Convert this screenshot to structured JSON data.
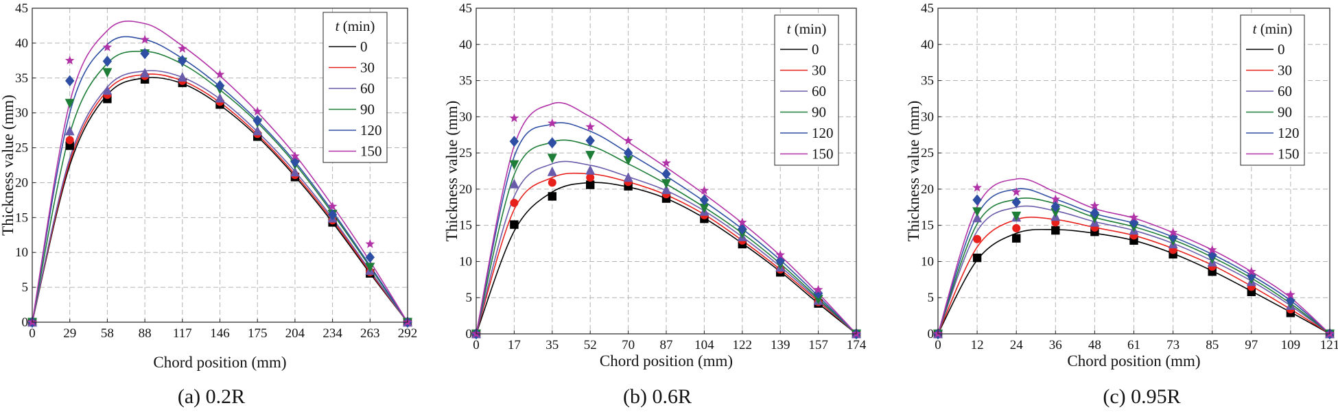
{
  "chart_data": [
    {
      "type": "line",
      "caption": "(a) 0.2R",
      "xlabel": "Chord position (mm)",
      "ylabel": "Thickness value (mm)",
      "x_ticks": [
        0,
        29,
        58,
        88,
        117,
        146,
        175,
        204,
        234,
        263,
        292
      ],
      "ylim": [
        0,
        45
      ],
      "y_ticks": [
        0,
        5,
        10,
        15,
        20,
        25,
        30,
        35,
        40,
        45
      ],
      "grid": true,
      "legend": {
        "title_var": "t",
        "title_unit": " (min)",
        "position": "top-right"
      },
      "series": [
        {
          "name": "0",
          "color": "#000000",
          "marker": "square",
          "points": [
            25.3,
            32.0,
            34.8,
            34.3,
            31.2,
            26.6,
            20.8,
            14.3,
            7.0
          ],
          "curve": [
            0,
            22.5,
            32.6,
            35.0,
            34.2,
            31.1,
            26.6,
            20.9,
            14.3,
            7.0,
            0
          ]
        },
        {
          "name": "30",
          "color": "#e8201c",
          "marker": "circle",
          "points": [
            26.1,
            32.6,
            35.3,
            34.6,
            31.6,
            27.0,
            21.1,
            14.6,
            7.2
          ],
          "curve": [
            0,
            23.0,
            33.2,
            35.5,
            34.6,
            31.5,
            26.9,
            21.2,
            14.6,
            7.2,
            0
          ]
        },
        {
          "name": "60",
          "color": "#6a5aaa",
          "marker": "triangle-up",
          "points": [
            27.4,
            33.2,
            35.7,
            35.1,
            32.1,
            27.4,
            21.5,
            14.9,
            7.4
          ],
          "curve": [
            0,
            23.5,
            33.7,
            36.0,
            35.1,
            32.0,
            27.3,
            21.6,
            14.9,
            7.4,
            0
          ]
        },
        {
          "name": "90",
          "color": "#1e7d37",
          "marker": "triangle-down",
          "points": [
            31.4,
            35.8,
            38.5,
            37.3,
            33.4,
            28.6,
            22.6,
            15.5,
            7.9
          ],
          "curve": [
            0,
            27.0,
            37.1,
            38.8,
            37.0,
            33.3,
            28.6,
            22.7,
            15.6,
            7.9,
            0
          ]
        },
        {
          "name": "120",
          "color": "#2e4ea3",
          "marker": "diamond",
          "points": [
            34.6,
            37.4,
            38.5,
            37.5,
            33.9,
            28.9,
            23.0,
            15.4,
            9.3
          ],
          "curve": [
            0,
            30.0,
            39.8,
            40.5,
            37.8,
            33.8,
            28.9,
            23.0,
            15.9,
            8.1,
            0
          ]
        },
        {
          "name": "150",
          "color": "#b132a6",
          "marker": "star",
          "points": [
            37.5,
            39.4,
            40.5,
            39.2,
            35.5,
            30.2,
            23.8,
            16.6,
            11.2
          ],
          "curve": [
            0,
            31.5,
            41.8,
            42.8,
            39.6,
            35.3,
            30.1,
            24.0,
            16.7,
            8.7,
            0
          ]
        }
      ]
    },
    {
      "type": "line",
      "caption": "(b) 0.6R",
      "xlabel": "Chord position (mm)",
      "ylabel": "Thickness value (mm)",
      "x_ticks": [
        0,
        17,
        35,
        52,
        70,
        87,
        104,
        122,
        139,
        157,
        174
      ],
      "ylim": [
        0,
        45
      ],
      "y_ticks": [
        0,
        5,
        10,
        15,
        20,
        25,
        30,
        35,
        40,
        45
      ],
      "grid": true,
      "legend": {
        "title_var": "t",
        "title_unit": " (min)",
        "position": "top-right"
      },
      "series": [
        {
          "name": "0",
          "color": "#000000",
          "marker": "square",
          "points": [
            15.1,
            19.0,
            20.6,
            20.4,
            18.7,
            15.9,
            12.4,
            8.5,
            4.2
          ],
          "curve": [
            0,
            14.2,
            19.6,
            20.9,
            20.3,
            18.7,
            16.0,
            12.5,
            8.6,
            4.2,
            0
          ]
        },
        {
          "name": "30",
          "color": "#e8201c",
          "marker": "circle",
          "points": [
            18.1,
            20.9,
            21.6,
            21.0,
            19.3,
            16.4,
            12.9,
            8.9,
            4.4
          ],
          "curve": [
            0,
            17.2,
            21.6,
            22.1,
            21.0,
            19.2,
            16.5,
            12.9,
            8.9,
            4.5,
            0
          ]
        },
        {
          "name": "60",
          "color": "#6a5aaa",
          "marker": "triangle-up",
          "points": [
            20.7,
            22.4,
            22.6,
            21.6,
            19.9,
            16.9,
            13.4,
            9.2,
            4.6
          ],
          "curve": [
            0,
            19.0,
            23.5,
            23.3,
            21.7,
            19.8,
            17.0,
            13.4,
            9.3,
            4.7,
            0
          ]
        },
        {
          "name": "90",
          "color": "#1e7d37",
          "marker": "triangle-down",
          "points": [
            23.4,
            24.3,
            24.7,
            24.0,
            20.8,
            17.4,
            13.9,
            9.6,
            4.8
          ],
          "curve": [
            0,
            22.0,
            26.5,
            26.0,
            23.5,
            20.7,
            17.5,
            13.9,
            9.7,
            4.9,
            0
          ]
        },
        {
          "name": "120",
          "color": "#2e4ea3",
          "marker": "diamond",
          "points": [
            26.6,
            26.4,
            26.7,
            25.0,
            22.1,
            18.5,
            14.5,
            10.1,
            5.6
          ],
          "curve": [
            0,
            24.5,
            29.0,
            28.0,
            25.0,
            21.8,
            18.3,
            14.5,
            10.2,
            5.2,
            0
          ]
        },
        {
          "name": "150",
          "color": "#b132a6",
          "marker": "star",
          "points": [
            29.8,
            29.1,
            28.6,
            26.7,
            23.6,
            19.8,
            15.4,
            10.9,
            6.1
          ],
          "curve": [
            0,
            26.0,
            31.8,
            30.0,
            26.5,
            23.0,
            19.3,
            15.3,
            10.8,
            5.6,
            0
          ]
        }
      ]
    },
    {
      "type": "line",
      "caption": "(c) 0.95R",
      "xlabel": "Chord position (mm)",
      "ylabel": "Thickness value (mm)",
      "x_ticks": [
        0,
        12,
        24,
        36,
        48,
        61,
        73,
        85,
        97,
        109,
        121
      ],
      "ylim": [
        0,
        45
      ],
      "y_ticks": [
        0,
        5,
        10,
        15,
        20,
        25,
        30,
        35,
        40,
        45
      ],
      "grid": true,
      "legend": {
        "title_var": "t",
        "title_unit": " (min)",
        "position": "top-right"
      },
      "series": [
        {
          "name": "0",
          "color": "#000000",
          "marker": "square",
          "points": [
            10.5,
            13.2,
            14.3,
            14.1,
            12.9,
            11.0,
            8.6,
            5.8,
            2.9
          ],
          "curve": [
            0,
            10.2,
            13.9,
            14.4,
            13.9,
            12.9,
            11.1,
            8.7,
            5.9,
            3.0,
            0
          ]
        },
        {
          "name": "30",
          "color": "#e8201c",
          "marker": "circle",
          "points": [
            13.1,
            14.6,
            15.4,
            14.7,
            13.6,
            11.6,
            9.3,
            6.5,
            3.4
          ],
          "curve": [
            0,
            12.0,
            15.8,
            15.8,
            14.7,
            13.6,
            11.8,
            9.5,
            6.6,
            3.4,
            0
          ]
        },
        {
          "name": "60",
          "color": "#6a5aaa",
          "marker": "triangle-up",
          "points": [
            16.0,
            16.1,
            16.2,
            15.4,
            14.3,
            12.4,
            9.9,
            7.2,
            3.9
          ],
          "curve": [
            0,
            14.2,
            17.5,
            17.0,
            15.5,
            14.3,
            12.5,
            10.1,
            7.3,
            3.9,
            0
          ]
        },
        {
          "name": "90",
          "color": "#1e7d37",
          "marker": "triangle-down",
          "points": [
            16.9,
            16.3,
            16.8,
            16.0,
            14.8,
            12.9,
            10.4,
            7.6,
            4.2
          ],
          "curve": [
            0,
            15.2,
            18.6,
            18.0,
            16.1,
            14.8,
            13.0,
            10.6,
            7.7,
            4.2,
            0
          ]
        },
        {
          "name": "120",
          "color": "#2e4ea3",
          "marker": "diamond",
          "points": [
            18.5,
            18.2,
            17.6,
            16.7,
            15.4,
            13.4,
            10.9,
            8.0,
            4.6
          ],
          "curve": [
            0,
            16.4,
            20.0,
            18.6,
            16.6,
            15.3,
            13.4,
            11.0,
            8.1,
            4.6,
            0
          ]
        },
        {
          "name": "150",
          "color": "#b132a6",
          "marker": "star",
          "points": [
            20.2,
            19.6,
            18.6,
            17.7,
            16.1,
            14.0,
            11.6,
            8.6,
            5.4
          ],
          "curve": [
            0,
            17.6,
            21.4,
            19.6,
            17.3,
            16.0,
            14.0,
            11.6,
            8.6,
            5.0,
            0
          ]
        }
      ]
    }
  ]
}
